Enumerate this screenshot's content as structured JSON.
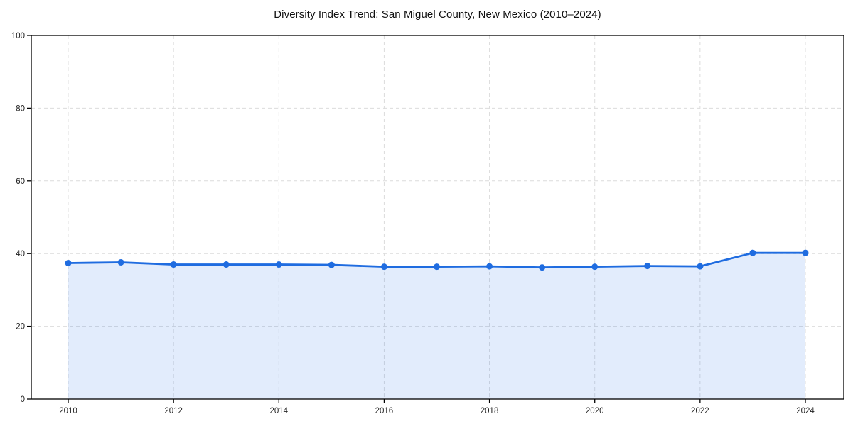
{
  "chart_data": {
    "type": "line",
    "title": "Diversity Index Trend: San Miguel County, New Mexico (2010–2024)",
    "xlabel": "",
    "ylabel": "",
    "x": [
      2010,
      2011,
      2012,
      2013,
      2014,
      2015,
      2016,
      2017,
      2018,
      2019,
      2020,
      2021,
      2022,
      2023,
      2024
    ],
    "values": [
      37.4,
      37.6,
      37.0,
      37.0,
      37.0,
      36.9,
      36.4,
      36.4,
      36.5,
      36.2,
      36.4,
      36.6,
      36.5,
      40.2,
      40.2
    ],
    "ylim": [
      0,
      100
    ],
    "yticks": [
      0,
      20,
      40,
      60,
      80,
      100
    ],
    "xticks": [
      2010,
      2012,
      2014,
      2016,
      2018,
      2020,
      2022,
      2024
    ],
    "grid": "dashed-both-axes",
    "legend": "none",
    "area_fill_to_zero": true,
    "colors": {
      "line": "#1f6ce0",
      "marker": "#1f6ce0",
      "area_fill": "rgba(32,108,229,0.13)",
      "gridline": "#dcdcdc",
      "axis": "#000000",
      "tick_text": "#222222",
      "title_text": "#111111",
      "background": "#ffffff"
    }
  }
}
